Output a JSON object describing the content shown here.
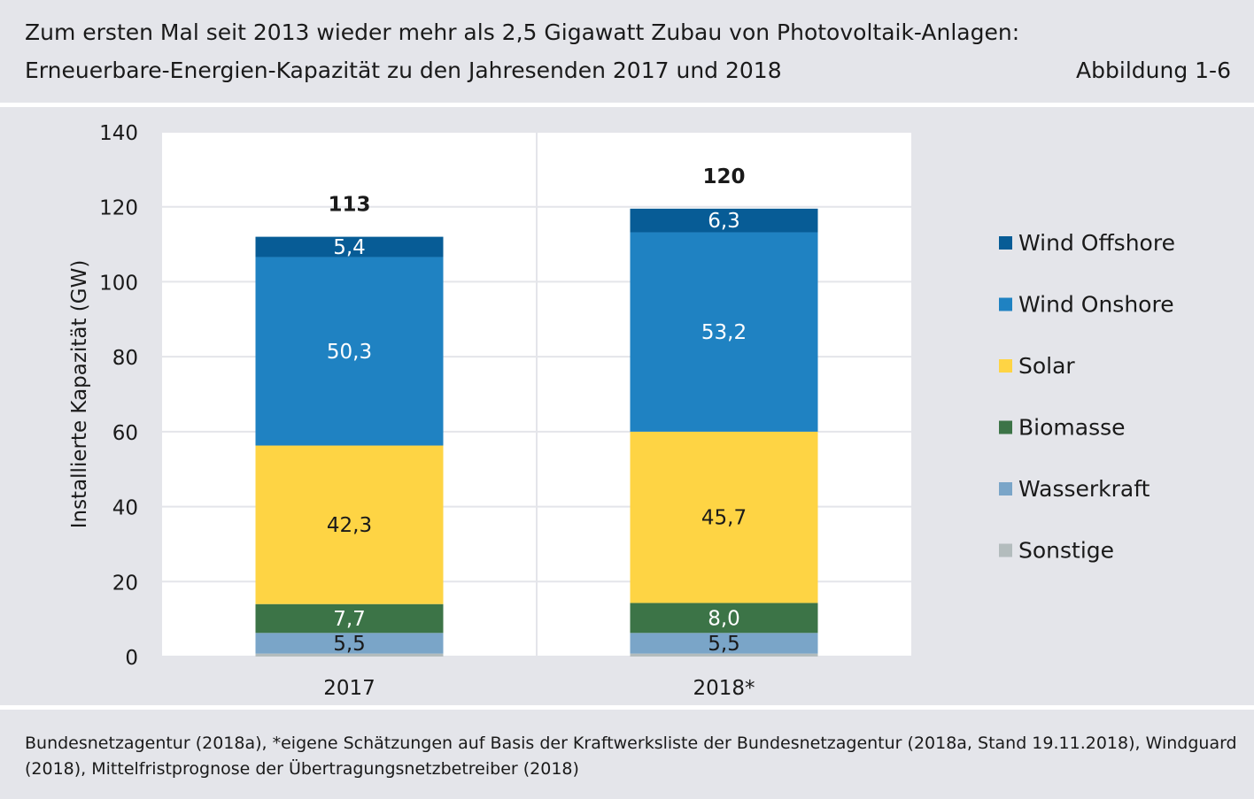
{
  "header": {
    "title_line1": "Zum ersten Mal seit 2013 wieder mehr als 2,5 Gigawatt Zubau von Photovoltaik-Anlagen:",
    "title_line2": "Erneuerbare-Energien-Kapazität zu den Jahresenden 2017 und 2018",
    "figure_label": "Abbildung 1-6"
  },
  "source": {
    "text": "Bundesnetzagentur (2018a), *eigene Schätzungen auf Basis der Kraftwerksliste der Bundesnetzagentur (2018a, Stand 19.11.2018), Windguard (2018), Mittelfristprognose der Übertragungsnetzbetreiber (2018)"
  },
  "chart_data": {
    "type": "bar",
    "stacked": true,
    "ylabel": "Installierte Kapazität (GW)",
    "ylim": [
      0,
      140
    ],
    "yticks": [
      0,
      20,
      40,
      60,
      80,
      100,
      120,
      140
    ],
    "grid": true,
    "legend_position": "right",
    "categories": [
      "2017",
      "2018*"
    ],
    "totals": [
      113,
      120
    ],
    "total_labels": [
      "113",
      "120"
    ],
    "series": [
      {
        "name": "Sonstige",
        "color": "#b3bcbd",
        "values": [
          0.8,
          0.8
        ],
        "labels": [
          "",
          ""
        ],
        "label_color": "#ffffff"
      },
      {
        "name": "Wasserkraft",
        "color": "#7aa5c8",
        "values": [
          5.5,
          5.5
        ],
        "labels": [
          "5,5",
          "5,5"
        ],
        "label_color": "#1a1a1a"
      },
      {
        "name": "Biomasse",
        "color": "#3c7447",
        "values": [
          7.7,
          8.0
        ],
        "labels": [
          "7,7",
          "8,0"
        ],
        "label_color": "#ffffff"
      },
      {
        "name": "Solar",
        "color": "#fed444",
        "values": [
          42.3,
          45.7
        ],
        "labels": [
          "42,3",
          "45,7"
        ],
        "label_color": "#1a1a1a"
      },
      {
        "name": "Wind Onshore",
        "color": "#1f82c2",
        "values": [
          50.3,
          53.2
        ],
        "labels": [
          "50,3",
          "53,2"
        ],
        "label_color": "#ffffff"
      },
      {
        "name": "Wind Offshore",
        "color": "#075c96",
        "values": [
          5.4,
          6.3
        ],
        "labels": [
          "5,4",
          "6,3"
        ],
        "label_color": "#ffffff"
      }
    ],
    "legend_order": [
      "Wind Offshore",
      "Wind Onshore",
      "Solar",
      "Biomasse",
      "Wasserkraft",
      "Sonstige"
    ]
  }
}
